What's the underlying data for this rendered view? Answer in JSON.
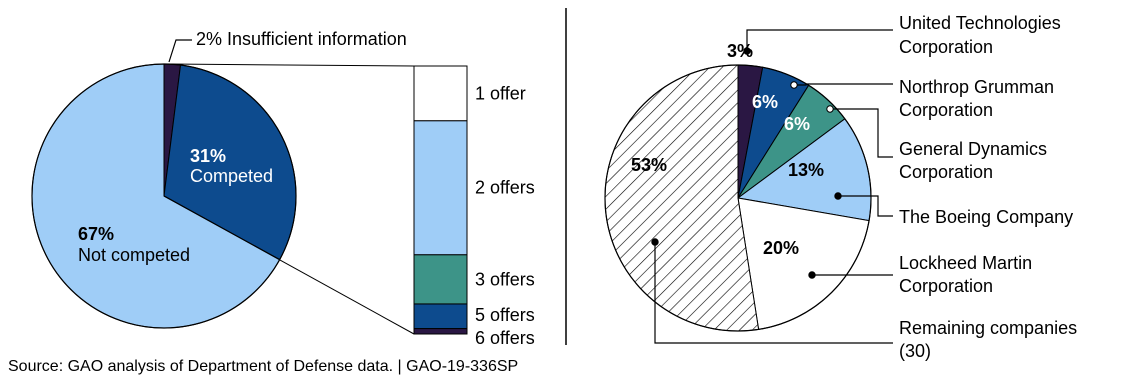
{
  "chart_data": [
    {
      "type": "pie",
      "title": "",
      "slices": [
        {
          "label": "Competed",
          "value": 31,
          "display": "31%",
          "color": "#0d4b8e"
        },
        {
          "label": "Not competed",
          "value": 67,
          "display": "67%",
          "color": "#9fcdf7"
        },
        {
          "label": "Insufficient information",
          "value": 2,
          "display": "2%",
          "color": "#2a1743"
        }
      ],
      "callout_text": "2% Insufficient information"
    },
    {
      "type": "bar",
      "stacked": true,
      "title": "",
      "note": "Breakdown of competed awards by number of offers (stacked from bottom)",
      "segments": [
        {
          "label": "6 offers",
          "value": 2,
          "color": "#2a1743"
        },
        {
          "label": "5 offers",
          "value": 9,
          "color": "#0d4b8e"
        },
        {
          "label": "3 offers",
          "value": 18,
          "color": "#3d9488"
        },
        {
          "label": "2 offers",
          "value": 49,
          "color": "#9fcdf7"
        },
        {
          "label": "1 offer",
          "value": 20,
          "color": "#ffffff"
        }
      ]
    },
    {
      "type": "pie",
      "title": "",
      "slices": [
        {
          "label": "United Technologies Corporation",
          "legend": [
            "United Technologies",
            "Corporation"
          ],
          "value": 3,
          "display": "3%",
          "color": "#2a1743"
        },
        {
          "label": "Northrop Grumman Corporation",
          "legend": [
            "Northrop Grumman",
            "Corporation"
          ],
          "value": 6,
          "display": "6%",
          "color": "#0d4b8e"
        },
        {
          "label": "General Dynamics Corporation",
          "legend": [
            "General Dynamics",
            "Corporation"
          ],
          "value": 6,
          "display": "6%",
          "color": "#3d9488"
        },
        {
          "label": "The Boeing Company",
          "legend": [
            "The Boeing Company"
          ],
          "value": 13,
          "display": "13%",
          "color": "#9fcdf7"
        },
        {
          "label": "Lockheed Martin Corporation",
          "legend": [
            "Lockheed Martin",
            "Corporation"
          ],
          "value": 20,
          "display": "20%",
          "color": "#ffffff"
        },
        {
          "label": "Remaining companies (30)",
          "legend": [
            "Remaining companies",
            "(30)"
          ],
          "value": 53,
          "display": "53%",
          "color": "hatched"
        }
      ]
    }
  ],
  "source": "Source: GAO analysis of Department of Defense data.  |  GAO-19-336SP"
}
